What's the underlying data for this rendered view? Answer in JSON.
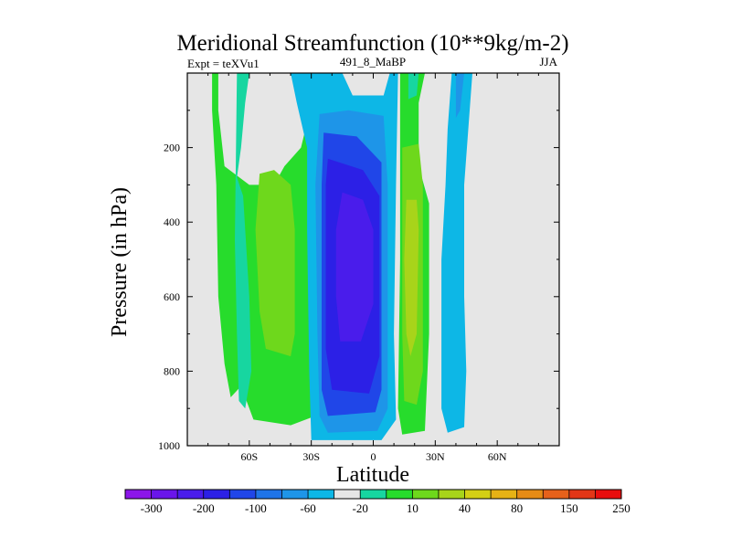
{
  "chart_data": {
    "type": "contour",
    "title": "Meridional Streamfunction (10**9kg/m-2)",
    "left_label": "Expt = teXVu1",
    "center_label": "491_8_MaBP",
    "right_label": "JJA",
    "xlabel": "Latitude",
    "ylabel": "Pressure (in hPa)",
    "xlim": [
      -90,
      90
    ],
    "ylim": [
      0,
      1000
    ],
    "x_ticks": [
      {
        "value": -60,
        "label": "60S"
      },
      {
        "value": -30,
        "label": "30S"
      },
      {
        "value": 0,
        "label": "0"
      },
      {
        "value": 30,
        "label": "30N"
      },
      {
        "value": 60,
        "label": "60N"
      }
    ],
    "y_ticks": [
      {
        "value": 200,
        "label": "200"
      },
      {
        "value": 400,
        "label": "400"
      },
      {
        "value": 600,
        "label": "600"
      },
      {
        "value": 800,
        "label": "800"
      },
      {
        "value": 1000,
        "label": "1000"
      }
    ],
    "missing_color": "#e6e6e6",
    "colorbar": {
      "colors": [
        "#8c16e9",
        "#6a16ea",
        "#4a1ceb",
        "#2c20e6",
        "#2046e8",
        "#1f74e8",
        "#1e95e8",
        "#0db7e6",
        "#e6e6e6",
        "#17d6a0",
        "#27dc2c",
        "#6ed81c",
        "#a8d41a",
        "#d4cf15",
        "#e6b215",
        "#e68b15",
        "#e6611a",
        "#e23617",
        "#e80e0e"
      ],
      "labels": [
        "-300",
        "-200",
        "-100",
        "-60",
        "-20",
        "10",
        "40",
        "80",
        "150",
        "250"
      ]
    },
    "regions": [
      {
        "name": "southern-outer-cell-40",
        "value": 40,
        "color": "#27dc2c",
        "points": [
          [
            -78,
            0
          ],
          [
            -75,
            0
          ],
          [
            -75,
            100
          ],
          [
            -72,
            250
          ],
          [
            -60,
            300
          ],
          [
            -48,
            300
          ],
          [
            -43,
            250
          ],
          [
            -35,
            200
          ],
          [
            -28,
            40
          ],
          [
            -28,
            920
          ],
          [
            -40,
            945
          ],
          [
            -58,
            930
          ],
          [
            -64,
            840
          ],
          [
            -69,
            870
          ],
          [
            -72,
            780
          ],
          [
            -75,
            600
          ],
          [
            -76,
            300
          ],
          [
            -78,
            100
          ]
        ]
      },
      {
        "name": "southern-outer-cell-80",
        "value": 80,
        "color": "#6ed81c",
        "points": [
          [
            -55,
            270
          ],
          [
            -48,
            260
          ],
          [
            -40,
            300
          ],
          [
            -38,
            420
          ],
          [
            -38,
            700
          ],
          [
            -40,
            760
          ],
          [
            -52,
            740
          ],
          [
            -55,
            640
          ],
          [
            -57,
            420
          ]
        ]
      },
      {
        "name": "southern-outer-cell-10",
        "value": 10,
        "color": "#17d6a0",
        "points": [
          [
            -66,
            0
          ],
          [
            -60,
            0
          ],
          [
            -62,
            80
          ],
          [
            -64,
            200
          ],
          [
            -66,
            280
          ],
          [
            -63,
            330
          ],
          [
            -60,
            600
          ],
          [
            -59,
            800
          ],
          [
            -62,
            900
          ],
          [
            -65,
            880
          ],
          [
            -66,
            700
          ],
          [
            -67,
            450
          ]
        ]
      },
      {
        "name": "hadley-minus-20",
        "value": -20,
        "color": "#0db7e6",
        "points": [
          [
            -40,
            0
          ],
          [
            -15,
            0
          ],
          [
            -10,
            60
          ],
          [
            5,
            60
          ],
          [
            8,
            0
          ],
          [
            12,
            0
          ],
          [
            11,
            300
          ],
          [
            10,
            700
          ],
          [
            11,
            930
          ],
          [
            4,
            985
          ],
          [
            -30,
            985
          ],
          [
            -31,
            800
          ],
          [
            -32,
            420
          ],
          [
            -32,
            200
          ],
          [
            -37,
            80
          ]
        ]
      },
      {
        "name": "hadley-minus-60",
        "value": -60,
        "color": "#1e95e8",
        "points": [
          [
            -26,
            110
          ],
          [
            -12,
            100
          ],
          [
            5,
            115
          ],
          [
            7,
            300
          ],
          [
            7,
            900
          ],
          [
            2,
            960
          ],
          [
            -22,
            965
          ],
          [
            -26,
            920
          ],
          [
            -27,
            700
          ],
          [
            -28,
            300
          ]
        ]
      },
      {
        "name": "hadley-minus-100",
        "value": -100,
        "color": "#2046e8",
        "points": [
          [
            -24,
            160
          ],
          [
            -8,
            170
          ],
          [
            4,
            240
          ],
          [
            4,
            850
          ],
          [
            1,
            910
          ],
          [
            -22,
            920
          ],
          [
            -25,
            850
          ],
          [
            -25,
            300
          ]
        ]
      },
      {
        "name": "hadley-minus-200",
        "value": -200,
        "color": "#2c20e6",
        "points": [
          [
            -22,
            230
          ],
          [
            -5,
            260
          ],
          [
            3,
            330
          ],
          [
            3,
            760
          ],
          [
            -2,
            860
          ],
          [
            -20,
            850
          ],
          [
            -23,
            740
          ],
          [
            -23,
            300
          ]
        ]
      },
      {
        "name": "hadley-minus-300",
        "value": -300,
        "color": "#4a1ceb",
        "points": [
          [
            -15,
            320
          ],
          [
            -5,
            340
          ],
          [
            0,
            420
          ],
          [
            0,
            620
          ],
          [
            -6,
            720
          ],
          [
            -16,
            720
          ],
          [
            -18,
            600
          ],
          [
            -18,
            420
          ]
        ]
      },
      {
        "name": "northern-cell-40",
        "value": 40,
        "color": "#27dc2c",
        "points": [
          [
            13,
            0
          ],
          [
            25,
            0
          ],
          [
            22,
            80
          ],
          [
            22,
            250
          ],
          [
            27,
            350
          ],
          [
            27,
            700
          ],
          [
            25,
            960
          ],
          [
            14,
            970
          ],
          [
            12,
            900
          ],
          [
            13,
            500
          ]
        ]
      },
      {
        "name": "northern-cell-80",
        "value": 80,
        "color": "#6ed81c",
        "points": [
          [
            14,
            200
          ],
          [
            22,
            190
          ],
          [
            24,
            300
          ],
          [
            24,
            800
          ],
          [
            21,
            890
          ],
          [
            15,
            880
          ],
          [
            14,
            700
          ]
        ]
      },
      {
        "name": "northern-cell-150",
        "value": 150,
        "color": "#a8d41a",
        "points": [
          [
            16,
            340
          ],
          [
            21,
            340
          ],
          [
            22,
            420
          ],
          [
            21,
            700
          ],
          [
            18,
            760
          ],
          [
            16,
            700
          ],
          [
            15,
            500
          ]
        ]
      },
      {
        "name": "northern-cell-10",
        "value": 10,
        "color": "#17d6a0",
        "points": [
          [
            17,
            0
          ],
          [
            22,
            0
          ],
          [
            21,
            60
          ],
          [
            17,
            70
          ]
        ]
      },
      {
        "name": "northern-subpolar-minus-20",
        "value": -20,
        "color": "#0db7e6",
        "points": [
          [
            38,
            0
          ],
          [
            48,
            0
          ],
          [
            46,
            150
          ],
          [
            44,
            300
          ],
          [
            44,
            600
          ],
          [
            45,
            800
          ],
          [
            44,
            950
          ],
          [
            36,
            965
          ],
          [
            33,
            900
          ],
          [
            33,
            500
          ],
          [
            35,
            300
          ],
          [
            36,
            150
          ]
        ]
      },
      {
        "name": "northern-subpolar-minus-60",
        "value": -60,
        "color": "#1e95e8",
        "points": [
          [
            40,
            0
          ],
          [
            44,
            0
          ],
          [
            42,
            100
          ],
          [
            40,
            120
          ]
        ]
      }
    ]
  }
}
